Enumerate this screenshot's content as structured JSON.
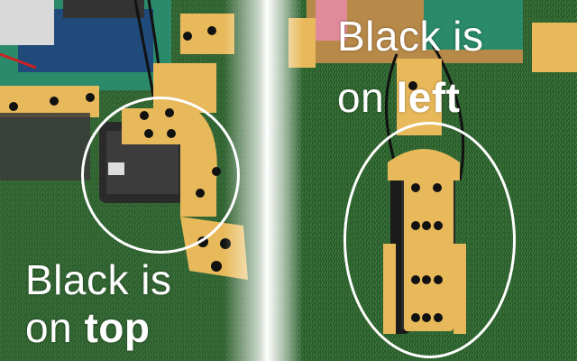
{
  "left_caption": {
    "line1": "Black is",
    "line2_prefix": "on",
    "line2_bold": "top"
  },
  "right_caption": {
    "line1": "Black is",
    "line2_prefix": "on",
    "line2_bold": "left"
  },
  "colors": {
    "grass": "#2f5a2f",
    "bracket": "#e8b95a",
    "servo_black": "#1a1a1a",
    "annotation": "#ffffff"
  }
}
